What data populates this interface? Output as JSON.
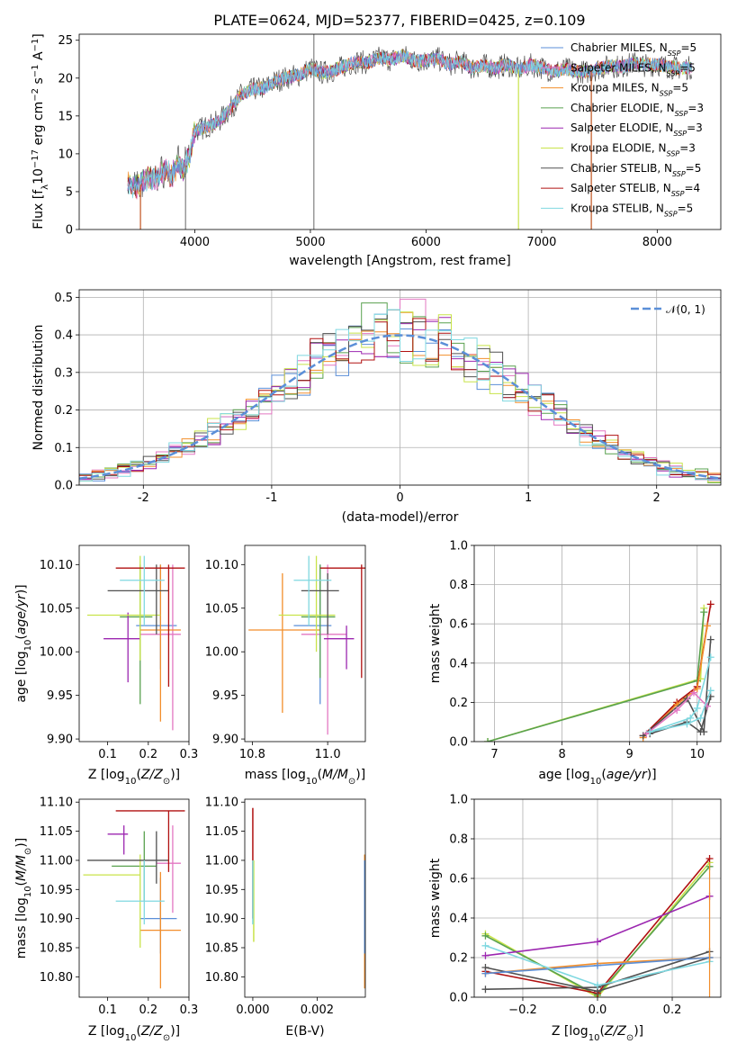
{
  "title_main": "PLATE=0624, MJD=52377, FIBERID=0425, z=0.109",
  "series": [
    {
      "name": "Chabrier MILES, N<sub>SSP</sub>=5",
      "label": "Chabrier MILES, N",
      "sub": "SSP",
      "tail": "=5",
      "color": "#5b8fd8"
    },
    {
      "name": "Salpeter MILES, N<sub>SSP</sub>=5",
      "label": "Salpeter MILES, N",
      "sub": "SSP",
      "tail": "=5",
      "color": "#e377c2"
    },
    {
      "name": "Kroupa MILES, N<sub>SSP</sub>=5",
      "label": "Kroupa MILES, N",
      "sub": "SSP",
      "tail": "=5",
      "color": "#f28e2b"
    },
    {
      "name": "Chabrier ELODIE, N<sub>SSP</sub>=3",
      "label": "Chabrier ELODIE, N",
      "sub": "SSP",
      "tail": "=3",
      "color": "#59a14f"
    },
    {
      "name": "Salpeter ELODIE, N<sub>SSP</sub>=3",
      "label": "Salpeter ELODIE, N",
      "sub": "SSP",
      "tail": "=3",
      "color": "#9c27b0"
    },
    {
      "name": "Kroupa ELODIE, N<sub>SSP</sub>=3",
      "label": "Kroupa ELODIE, N",
      "sub": "SSP",
      "tail": "=3",
      "color": "#c8e34a"
    },
    {
      "name": "Chabrier STELIB, N<sub>SSP</sub>=5",
      "label": "Chabrier STELIB, N",
      "sub": "SSP",
      "tail": "=5",
      "color": "#505050"
    },
    {
      "name": "Salpeter STELIB, N<sub>SSP</sub>=4",
      "label": "Salpeter STELIB, N",
      "sub": "SSP",
      "tail": "=4",
      "color": "#b01010"
    },
    {
      "name": "Kroupa STELIB, N<sub>SSP</sub>=5",
      "label": "Kroupa STELIB, N",
      "sub": "SSP",
      "tail": "=5",
      "color": "#7fd8e0"
    }
  ],
  "chart_data": [
    {
      "id": "spectrum",
      "type": "line",
      "title": "PLATE=0624, MJD=52377, FIBERID=0425, z=0.109",
      "xlabel": "wavelength [Angstrom, rest frame]",
      "ylabel": "Flux [f_λ 10^-17 erg cm^-2 s^-1 A^-1]",
      "xlim": [
        3000,
        8550
      ],
      "ylim": [
        0,
        25.8
      ],
      "xticks": [
        4000,
        5000,
        6000,
        7000,
        8000
      ],
      "yticks": [
        0,
        5,
        10,
        15,
        20,
        25
      ],
      "continuum": {
        "x": [
          3420,
          3500,
          3550,
          3600,
          3650,
          3700,
          3750,
          3800,
          3850,
          3900,
          3950,
          4000,
          4100,
          4200,
          4300,
          4400,
          4500,
          4600,
          4700,
          4800,
          4900,
          5000,
          5100,
          5200,
          5300,
          5400,
          5500,
          5600,
          5700,
          5800,
          5900,
          6000,
          6100,
          6200,
          6300,
          6400,
          6500,
          6600,
          6700,
          6800,
          6900,
          7000,
          7100,
          7200,
          7300,
          7400,
          7500,
          7600,
          7700,
          7800,
          7900,
          8000,
          8100,
          8200,
          8300
        ],
        "y": [
          6.0,
          5.5,
          6.2,
          7.0,
          6.6,
          7.4,
          8.0,
          6.8,
          8.8,
          7.8,
          9.5,
          13.0,
          13.6,
          14.2,
          15.8,
          17.8,
          18.5,
          18.7,
          19.6,
          20.1,
          20.4,
          21.3,
          20.7,
          21.0,
          21.6,
          22.2,
          22.0,
          22.7,
          22.4,
          23.0,
          22.3,
          22.3,
          22.6,
          21.8,
          22.2,
          21.3,
          21.7,
          21.3,
          21.8,
          21.1,
          21.7,
          21.4,
          20.9,
          21.2,
          20.9,
          20.8,
          21.3,
          21.6,
          21.5,
          22.0,
          21.7,
          21.8,
          21.5,
          21.3,
          21.4
        ]
      },
      "spikes": [
        {
          "x": 3530,
          "y": 0
        },
        {
          "x": 3920,
          "y": 0
        },
        {
          "x": 5030,
          "y": 0
        },
        {
          "x": 5030,
          "y": 25.8
        },
        {
          "x": 6800,
          "y": 0
        },
        {
          "x": 7430,
          "y": 0
        }
      ],
      "legend": "upper right"
    },
    {
      "id": "residuals",
      "type": "histogram",
      "xlabel": "(data-model)/error",
      "ylabel": "Normed distribution",
      "xlim": [
        -2.5,
        2.5
      ],
      "ylim": [
        0,
        0.52
      ],
      "xticks": [
        -2,
        -1,
        0,
        1,
        2
      ],
      "yticks": [
        0.0,
        0.1,
        0.2,
        0.3,
        0.4,
        0.5
      ],
      "bin_width": 0.1,
      "legend_label": "𝒩(0, 1)",
      "legend_color": "#5b8fd8",
      "grid": true
    },
    {
      "id": "age_vs_Z",
      "type": "scatter",
      "xlabel": "Z [log10(Z/Z⊙)]",
      "ylabel": "age [log10(age/yr)]",
      "xlim": [
        0.03,
        0.3
      ],
      "ylim": [
        9.897,
        10.122
      ],
      "xticks": [
        0.1,
        0.2,
        0.3
      ],
      "yticks": [
        9.9,
        9.95,
        10.0,
        10.05,
        10.1
      ],
      "points": [
        {
          "x": 0.23,
          "y": 10.03,
          "ex": [
            0.17,
            0.27
          ],
          "ey": [
            9.98,
            10.1
          ]
        },
        {
          "x": 0.26,
          "y": 10.02,
          "ex": [
            0.18,
            0.28
          ],
          "ey": [
            9.91,
            10.1
          ]
        },
        {
          "x": 0.23,
          "y": 10.025,
          "ex": [
            0.18,
            0.28
          ],
          "ey": [
            9.92,
            10.1
          ]
        },
        {
          "x": 0.18,
          "y": 10.04,
          "ex": [
            0.13,
            0.21
          ],
          "ey": [
            9.94,
            10.1
          ]
        },
        {
          "x": 0.15,
          "y": 10.015,
          "ex": [
            0.09,
            0.18
          ],
          "ey": [
            9.965,
            10.045
          ]
        },
        {
          "x": 0.18,
          "y": 10.042,
          "ex": [
            0.05,
            0.23
          ],
          "ey": [
            9.99,
            10.11
          ]
        },
        {
          "x": 0.22,
          "y": 10.07,
          "ex": [
            0.1,
            0.25
          ],
          "ey": [
            10.02,
            10.1
          ]
        },
        {
          "x": 0.25,
          "y": 10.096,
          "ex": [
            0.12,
            0.29
          ],
          "ey": [
            9.96,
            10.1
          ]
        },
        {
          "x": 0.19,
          "y": 10.082,
          "ex": [
            0.13,
            0.24
          ],
          "ey": [
            10.03,
            10.11
          ]
        }
      ]
    },
    {
      "id": "age_vs_mass",
      "type": "scatter",
      "xlabel": "mass [log10(M/M⊙)]",
      "ylabel": "",
      "xlim": [
        10.78,
        11.1
      ],
      "ylim": [
        9.897,
        10.122
      ],
      "xticks": [
        10.8,
        11.0
      ],
      "yticks": [
        9.9,
        9.95,
        10.0,
        10.05,
        10.1
      ],
      "points": [
        {
          "x": 10.98,
          "y": 10.03,
          "ex": [
            10.91,
            11.01
          ],
          "ey": [
            9.94,
            10.1
          ]
        },
        {
          "x": 11.0,
          "y": 10.02,
          "ex": [
            10.93,
            11.05
          ],
          "ey": [
            9.905,
            10.1
          ]
        },
        {
          "x": 10.88,
          "y": 10.025,
          "ex": [
            10.79,
            10.98
          ],
          "ey": [
            9.93,
            10.09
          ]
        },
        {
          "x": 10.98,
          "y": 10.04,
          "ex": [
            10.93,
            11.02
          ],
          "ey": [
            9.97,
            10.1
          ]
        },
        {
          "x": 11.05,
          "y": 10.015,
          "ex": [
            10.99,
            11.07
          ],
          "ey": [
            9.98,
            10.03
          ]
        },
        {
          "x": 10.97,
          "y": 10.042,
          "ex": [
            10.87,
            11.02
          ],
          "ey": [
            10.0,
            10.11
          ]
        },
        {
          "x": 11.0,
          "y": 10.07,
          "ex": [
            10.93,
            11.03
          ],
          "ey": [
            10.02,
            10.09
          ]
        },
        {
          "x": 11.09,
          "y": 10.096,
          "ex": [
            10.98,
            11.1
          ],
          "ey": [
            9.97,
            10.1
          ]
        },
        {
          "x": 10.95,
          "y": 10.082,
          "ex": [
            10.91,
            11.01
          ],
          "ey": [
            10.03,
            10.11
          ]
        }
      ]
    },
    {
      "id": "weight_vs_age",
      "type": "line",
      "xlabel": "age [log10(age/yr)]",
      "ylabel": "mass weight",
      "xlim": [
        6.7,
        10.35
      ],
      "ylim": [
        0,
        1.0
      ],
      "xticks": [
        7,
        8,
        9,
        10
      ],
      "yticks": [
        0.0,
        0.2,
        0.4,
        0.6,
        0.8,
        1.0
      ],
      "grid": true
    },
    {
      "id": "mass_vs_Z",
      "type": "scatter",
      "xlabel": "Z [log10(Z/Z⊙)]",
      "ylabel": "mass [log10(M/M⊙)]",
      "xlim": [
        0.03,
        0.3
      ],
      "ylim": [
        10.765,
        11.105
      ],
      "xticks": [
        0.1,
        0.2,
        0.3
      ],
      "yticks": [
        10.8,
        10.85,
        10.9,
        10.95,
        11.0,
        11.05,
        11.1
      ],
      "points": [
        {
          "x": 0.23,
          "y": 10.9,
          "ex": [
            0.18,
            0.27
          ],
          "ey": [
            10.84,
            10.97
          ]
        },
        {
          "x": 0.26,
          "y": 10.995,
          "ex": [
            0.22,
            0.28
          ],
          "ey": [
            10.91,
            11.06
          ]
        },
        {
          "x": 0.23,
          "y": 10.88,
          "ex": [
            0.18,
            0.28
          ],
          "ey": [
            10.78,
            10.98
          ]
        },
        {
          "x": 0.19,
          "y": 10.99,
          "ex": [
            0.11,
            0.22
          ],
          "ey": [
            10.93,
            11.05
          ]
        },
        {
          "x": 0.14,
          "y": 11.045,
          "ex": [
            0.1,
            0.15
          ],
          "ey": [
            11.01,
            11.06
          ]
        },
        {
          "x": 0.18,
          "y": 10.975,
          "ex": [
            0.04,
            0.18
          ],
          "ey": [
            10.85,
            11.01
          ]
        },
        {
          "x": 0.22,
          "y": 11.0,
          "ex": [
            0.05,
            0.25
          ],
          "ey": [
            10.96,
            11.05
          ]
        },
        {
          "x": 0.25,
          "y": 11.085,
          "ex": [
            0.12,
            0.29
          ],
          "ey": [
            10.98,
            11.085
          ]
        },
        {
          "x": 0.19,
          "y": 10.93,
          "ex": [
            0.12,
            0.24
          ],
          "ey": [
            10.89,
            11.0
          ]
        }
      ]
    },
    {
      "id": "mass_vs_EBV",
      "type": "scatter",
      "xlabel": "E(B-V)",
      "ylabel": "",
      "xlim": [
        -0.00025,
        0.0035
      ],
      "ylim": [
        10.765,
        11.105
      ],
      "xticks": [
        0.0,
        0.002
      ],
      "yticks": [
        10.8,
        10.85,
        10.9,
        10.95,
        11.0,
        11.05,
        11.1
      ],
      "points": [
        {
          "x": 0.0,
          "y": 10.99,
          "ey": [
            10.9,
            11.09
          ]
        },
        {
          "x": 0.0,
          "y": 10.97,
          "ey": [
            10.86,
            11.0
          ]
        },
        {
          "x": 0.0,
          "y": 10.93,
          "ey": [
            10.89,
            11.0
          ]
        },
        {
          "x": 0.00348,
          "y": 10.9,
          "ey": [
            10.78,
            11.01
          ]
        },
        {
          "x": 0.00348,
          "y": 10.95,
          "ey": [
            10.84,
            11.0
          ]
        }
      ]
    },
    {
      "id": "weight_vs_Z",
      "type": "line",
      "xlabel": "Z [log10(Z/Z⊙)]",
      "ylabel": "mass weight",
      "xlim": [
        -0.33,
        0.33
      ],
      "ylim": [
        0,
        1.0
      ],
      "xticks": [
        -0.2,
        0.0,
        0.2
      ],
      "yticks": [
        0.0,
        0.2,
        0.4,
        0.6,
        0.8,
        1.0
      ],
      "grid": true
    }
  ]
}
